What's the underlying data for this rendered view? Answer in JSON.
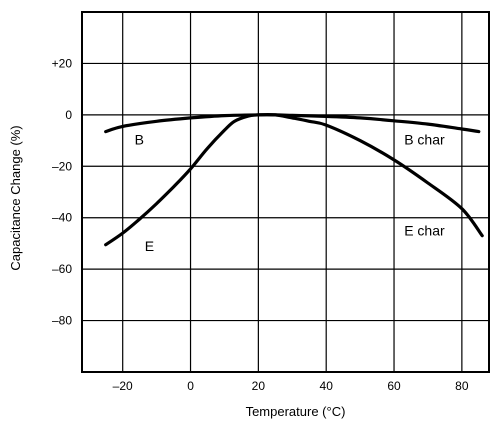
{
  "chart_data": {
    "type": "line",
    "xlabel": "Temperature (°C)",
    "ylabel": "Capacitance Change (%)",
    "xlim": [
      -32,
      88
    ],
    "ylim": [
      -100,
      40
    ],
    "x_ticks": [
      -20,
      0,
      20,
      40,
      60,
      80
    ],
    "x_tick_labels": [
      "–20",
      "0",
      "20",
      "40",
      "60",
      "80"
    ],
    "y_ticks": [
      20,
      0,
      -20,
      -40,
      -60,
      -80
    ],
    "y_tick_labels": [
      "+20",
      "0",
      "–20",
      "–40",
      "–60",
      "–80"
    ],
    "grid": true,
    "series": [
      {
        "name": "B",
        "x": [
          -25,
          -20,
          -10,
          0,
          10,
          20,
          25,
          30,
          40,
          50,
          60,
          70,
          80,
          85
        ],
        "y": [
          -6.5,
          -4.5,
          -2.5,
          -1.2,
          -0.3,
          0,
          0,
          -0.2,
          -0.6,
          -1.2,
          -2.3,
          -3.6,
          -5.5,
          -6.5
        ]
      },
      {
        "name": "E",
        "x": [
          -25,
          -20,
          -15,
          -10,
          -5,
          0,
          5,
          10,
          13,
          17,
          20,
          25,
          30,
          35,
          40,
          50,
          60,
          70,
          80,
          86
        ],
        "y": [
          -50.5,
          -46,
          -40.5,
          -34.5,
          -28,
          -21,
          -13,
          -6,
          -2.5,
          -0.5,
          0,
          0,
          -1.2,
          -2.5,
          -4,
          -10,
          -17.5,
          -26.5,
          -36.5,
          -47
        ]
      }
    ],
    "annotations": [
      {
        "text": "B",
        "x": -16.5,
        "y": -11.5
      },
      {
        "text": "B char",
        "x": 63,
        "y": -11.5
      },
      {
        "text": "E",
        "x": -13.5,
        "y": -53
      },
      {
        "text": "E char",
        "x": 63,
        "y": -47
      }
    ]
  }
}
